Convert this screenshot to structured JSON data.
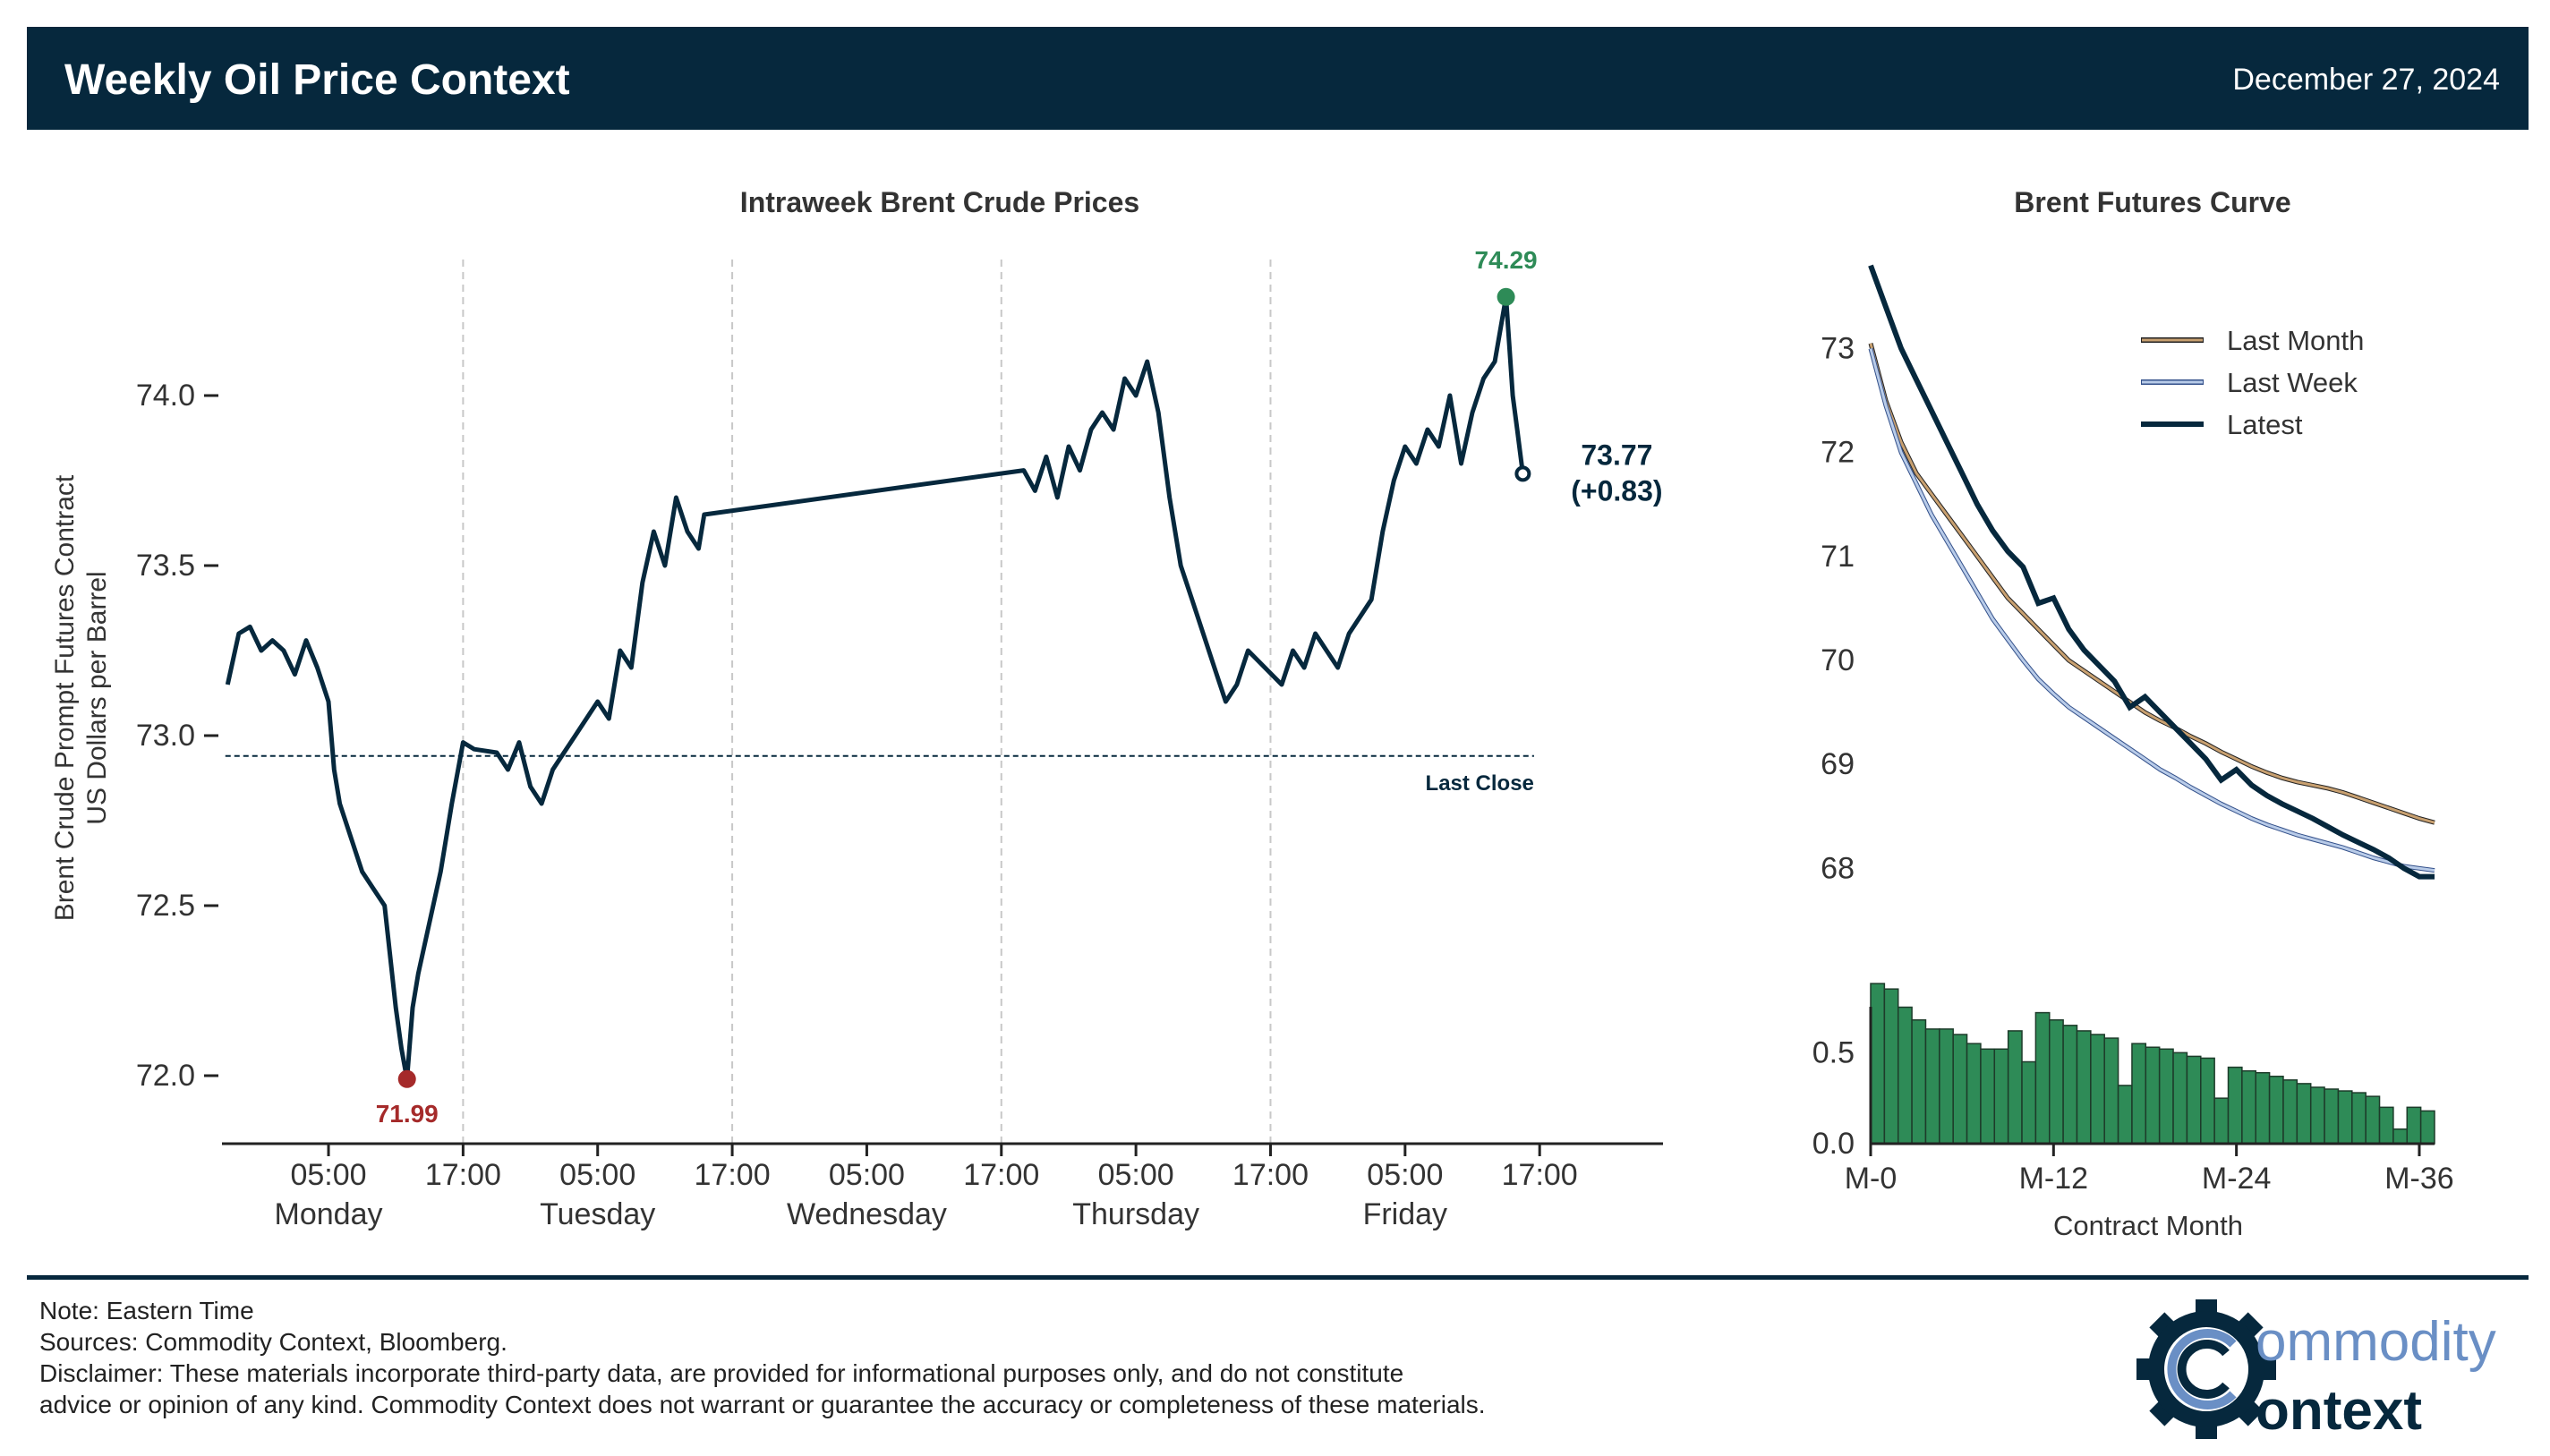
{
  "header": {
    "title": "Weekly Oil Price Context",
    "date": "December 27, 2024"
  },
  "colors": {
    "navy": "#06283d",
    "green": "#2e8b57",
    "red": "#a52a2a",
    "last_month": "#c8a070",
    "last_week": "#8aa5cc",
    "latest": "#06283d",
    "bar_fill": "#2e8b57"
  },
  "chart_data": [
    {
      "type": "line",
      "title": "Intraweek Brent Crude Prices",
      "ylabel_line1": "Brent Crude Prompt Futures Contract",
      "ylabel_line2": "US Dollars per Barrel",
      "ylim": [
        71.8,
        74.4
      ],
      "yticks": [
        72.0,
        72.5,
        73.0,
        73.5,
        74.0
      ],
      "ytick_labels": [
        "72.0",
        "72.5",
        "73.0",
        "73.5",
        "74.0"
      ],
      "xlim": [
        -9.5,
        119
      ],
      "xtick_hours": [
        0,
        12,
        24,
        36,
        48,
        60,
        72,
        84,
        96,
        108
      ],
      "xtick_labels": [
        "05:00",
        "17:00",
        "05:00",
        "17:00",
        "05:00",
        "17:00",
        "05:00",
        "17:00",
        "05:00",
        "17:00"
      ],
      "day_labels": [
        {
          "hour": 0,
          "label": "Monday"
        },
        {
          "hour": 24,
          "label": "Tuesday"
        },
        {
          "hour": 48,
          "label": "Wednesday"
        },
        {
          "hour": 72,
          "label": "Thursday"
        },
        {
          "hour": 96,
          "label": "Friday"
        }
      ],
      "gridlines_hours": [
        12,
        36,
        60,
        84
      ],
      "last_close": 72.94,
      "last_close_label": "Last Close",
      "low": {
        "hour": 7,
        "value": 71.99,
        "label": "71.99"
      },
      "high": {
        "hour": 105,
        "value": 74.29,
        "label": "74.29"
      },
      "last": {
        "hour": 106.5,
        "value": 73.77,
        "label": "73.77",
        "change": "(+0.83)"
      },
      "series": [
        [
          -9,
          73.15
        ],
        [
          -8,
          73.3
        ],
        [
          -7,
          73.32
        ],
        [
          -6,
          73.25
        ],
        [
          -5,
          73.28
        ],
        [
          -4,
          73.25
        ],
        [
          -3,
          73.18
        ],
        [
          -2,
          73.28
        ],
        [
          -1,
          73.2
        ],
        [
          0,
          73.1
        ],
        [
          0.5,
          72.9
        ],
        [
          1,
          72.8
        ],
        [
          2,
          72.7
        ],
        [
          3,
          72.6
        ],
        [
          4,
          72.55
        ],
        [
          5,
          72.5
        ],
        [
          6,
          72.2
        ],
        [
          6.5,
          72.08
        ],
        [
          7,
          71.99
        ],
        [
          7.5,
          72.2
        ],
        [
          8,
          72.3
        ],
        [
          9,
          72.45
        ],
        [
          10,
          72.6
        ],
        [
          11,
          72.8
        ],
        [
          12,
          72.98
        ],
        [
          13,
          72.96
        ],
        [
          15,
          72.95
        ],
        [
          16,
          72.9
        ],
        [
          17,
          72.98
        ],
        [
          18,
          72.85
        ],
        [
          19,
          72.8
        ],
        [
          20,
          72.9
        ],
        [
          21,
          72.95
        ],
        [
          22,
          73.0
        ],
        [
          23,
          73.05
        ],
        [
          24,
          73.1
        ],
        [
          25,
          73.05
        ],
        [
          26,
          73.25
        ],
        [
          27,
          73.2
        ],
        [
          28,
          73.45
        ],
        [
          29,
          73.6
        ],
        [
          30,
          73.5
        ],
        [
          31,
          73.7
        ],
        [
          32,
          73.6
        ],
        [
          33,
          73.55
        ],
        [
          33.5,
          73.65
        ],
        [
          62,
          73.78
        ],
        [
          63,
          73.72
        ],
        [
          64,
          73.82
        ],
        [
          65,
          73.7
        ],
        [
          66,
          73.85
        ],
        [
          67,
          73.78
        ],
        [
          68,
          73.9
        ],
        [
          69,
          73.95
        ],
        [
          70,
          73.9
        ],
        [
          71,
          74.05
        ],
        [
          72,
          74.0
        ],
        [
          73,
          74.1
        ],
        [
          74,
          73.95
        ],
        [
          75,
          73.7
        ],
        [
          76,
          73.5
        ],
        [
          77,
          73.4
        ],
        [
          78,
          73.3
        ],
        [
          79,
          73.2
        ],
        [
          80,
          73.1
        ],
        [
          81,
          73.15
        ],
        [
          82,
          73.25
        ],
        [
          85,
          73.15
        ],
        [
          86,
          73.25
        ],
        [
          87,
          73.2
        ],
        [
          88,
          73.3
        ],
        [
          89,
          73.25
        ],
        [
          90,
          73.2
        ],
        [
          91,
          73.3
        ],
        [
          92,
          73.35
        ],
        [
          93,
          73.4
        ],
        [
          94,
          73.6
        ],
        [
          95,
          73.75
        ],
        [
          96,
          73.85
        ],
        [
          97,
          73.8
        ],
        [
          98,
          73.9
        ],
        [
          99,
          73.85
        ],
        [
          100,
          74.0
        ],
        [
          101,
          73.8
        ],
        [
          102,
          73.95
        ],
        [
          103,
          74.05
        ],
        [
          104,
          74.1
        ],
        [
          105,
          74.29
        ],
        [
          105.6,
          74.0
        ],
        [
          106,
          73.9
        ],
        [
          106.5,
          73.77
        ]
      ]
    },
    {
      "type": "line",
      "title": "Brent Futures Curve",
      "xlabel": "Contract Month",
      "xtick_months": [
        0,
        12,
        24,
        36
      ],
      "xtick_labels": [
        "M-0",
        "M-12",
        "M-24",
        "M-36"
      ],
      "ylim": [
        67.4,
        73.9
      ],
      "yticks": [
        68,
        69,
        70,
        71,
        72,
        73
      ],
      "ytick_labels": [
        "68",
        "69",
        "70",
        "71",
        "72",
        "73"
      ],
      "legend_position": "top-right",
      "series": [
        {
          "name": "Last Month",
          "values": [
            73.05,
            72.5,
            72.1,
            71.8,
            71.6,
            71.4,
            71.2,
            71.0,
            70.8,
            70.6,
            70.45,
            70.3,
            70.15,
            70.0,
            69.9,
            69.8,
            69.7,
            69.6,
            69.5,
            69.42,
            69.35,
            69.27,
            69.2,
            69.12,
            69.05,
            68.98,
            68.92,
            68.87,
            68.83,
            68.8,
            68.77,
            68.73,
            68.68,
            68.63,
            68.58,
            68.53,
            68.48,
            68.44
          ]
        },
        {
          "name": "Last Week",
          "values": [
            73.0,
            72.45,
            72.0,
            71.7,
            71.4,
            71.15,
            70.9,
            70.65,
            70.4,
            70.2,
            70.0,
            69.82,
            69.68,
            69.55,
            69.45,
            69.35,
            69.25,
            69.15,
            69.05,
            68.95,
            68.87,
            68.78,
            68.7,
            68.62,
            68.55,
            68.48,
            68.42,
            68.37,
            68.32,
            68.28,
            68.24,
            68.2,
            68.15,
            68.1,
            68.06,
            68.02,
            68.0,
            67.98
          ]
        },
        {
          "name": "Latest",
          "values": [
            73.8,
            73.4,
            73.0,
            72.7,
            72.4,
            72.1,
            71.8,
            71.5,
            71.25,
            71.05,
            70.9,
            70.55,
            70.6,
            70.3,
            70.1,
            69.95,
            69.8,
            69.55,
            69.65,
            69.5,
            69.35,
            69.2,
            69.05,
            68.85,
            68.95,
            68.8,
            68.7,
            68.62,
            68.55,
            68.48,
            68.4,
            68.32,
            68.25,
            68.18,
            68.1,
            68.0,
            67.92,
            67.92
          ]
        }
      ],
      "spread": {
        "type": "bar",
        "ylim": [
          0,
          0.9
        ],
        "yticks": [
          0.0,
          0.5
        ],
        "ytick_labels": [
          "0.0",
          "0.5"
        ],
        "values": [
          0.88,
          0.85,
          0.75,
          0.68,
          0.63,
          0.63,
          0.6,
          0.55,
          0.52,
          0.52,
          0.62,
          0.45,
          0.72,
          0.68,
          0.65,
          0.62,
          0.6,
          0.58,
          0.32,
          0.55,
          0.53,
          0.52,
          0.5,
          0.48,
          0.47,
          0.25,
          0.42,
          0.4,
          0.39,
          0.37,
          0.35,
          0.33,
          0.31,
          0.3,
          0.29,
          0.28,
          0.26,
          0.2,
          0.08,
          0.2,
          0.18
        ]
      }
    }
  ],
  "footer": {
    "note": "Note: Eastern Time",
    "sources": "Sources: Commodity Context, Bloomberg.",
    "disclaimer_line1": "Disclaimer: These materials incorporate third-party data, are provided for informational purposes only, and do not constitute",
    "disclaimer_line2": "advice or opinion of any kind. Commodity Context does not warrant or guarantee the accuracy or completeness of these materials."
  },
  "logo": {
    "word1": "ommodity",
    "word2": "ontext",
    "alt_text": "Commodity Context"
  }
}
